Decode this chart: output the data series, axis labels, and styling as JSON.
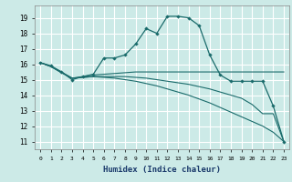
{
  "xlabel": "Humidex (Indice chaleur)",
  "xlim": [
    -0.5,
    23.5
  ],
  "ylim": [
    10.5,
    19.8
  ],
  "yticks": [
    11,
    12,
    13,
    14,
    15,
    16,
    17,
    18,
    19
  ],
  "xticks": [
    0,
    1,
    2,
    3,
    4,
    5,
    6,
    7,
    8,
    9,
    10,
    11,
    12,
    13,
    14,
    15,
    16,
    17,
    18,
    19,
    20,
    21,
    22,
    23
  ],
  "bg_color": "#cceae7",
  "grid_color": "#ffffff",
  "line_color": "#1a6b6b",
  "line1_x": [
    0,
    1,
    2,
    3,
    4,
    5,
    6,
    7,
    8,
    9,
    10,
    11,
    12,
    13,
    14,
    15,
    16,
    17,
    18,
    19,
    20,
    21,
    22,
    23
  ],
  "line1_y": [
    16.1,
    15.9,
    15.5,
    15.0,
    15.2,
    15.35,
    16.4,
    16.4,
    16.6,
    17.3,
    18.3,
    18.0,
    19.1,
    19.1,
    19.0,
    18.5,
    16.6,
    15.3,
    14.9,
    14.9,
    14.9,
    14.9,
    13.3,
    11.0
  ],
  "line2_x": [
    0,
    1,
    2,
    3,
    4,
    5,
    6,
    7,
    8,
    9,
    10,
    11,
    12,
    13,
    14,
    15,
    16,
    17,
    18,
    19,
    20,
    21,
    22,
    23
  ],
  "line2_y": [
    16.1,
    15.85,
    15.5,
    15.1,
    15.2,
    15.3,
    15.35,
    15.4,
    15.45,
    15.5,
    15.5,
    15.5,
    15.5,
    15.5,
    15.5,
    15.5,
    15.5,
    15.5,
    15.5,
    15.5,
    15.5,
    15.5,
    15.5,
    15.5
  ],
  "line3_x": [
    0,
    1,
    2,
    3,
    4,
    5,
    6,
    7,
    8,
    9,
    10,
    11,
    12,
    13,
    14,
    15,
    16,
    17,
    18,
    19,
    20,
    21,
    22,
    23
  ],
  "line3_y": [
    16.1,
    15.85,
    15.45,
    15.1,
    15.15,
    15.2,
    15.2,
    15.2,
    15.2,
    15.15,
    15.1,
    15.0,
    14.9,
    14.8,
    14.7,
    14.55,
    14.4,
    14.2,
    14.0,
    13.8,
    13.4,
    12.8,
    12.8,
    11.0
  ],
  "line4_x": [
    0,
    1,
    2,
    3,
    4,
    5,
    6,
    7,
    8,
    9,
    10,
    11,
    12,
    13,
    14,
    15,
    16,
    17,
    18,
    19,
    20,
    21,
    22,
    23
  ],
  "line4_y": [
    16.1,
    15.85,
    15.45,
    15.1,
    15.15,
    15.2,
    15.15,
    15.1,
    15.0,
    14.9,
    14.75,
    14.6,
    14.4,
    14.2,
    14.0,
    13.75,
    13.5,
    13.2,
    12.9,
    12.6,
    12.3,
    12.0,
    11.6,
    11.0
  ]
}
